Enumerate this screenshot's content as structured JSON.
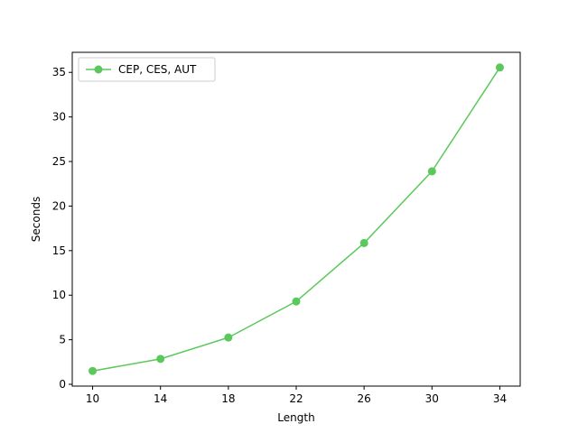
{
  "chart_data": {
    "type": "line",
    "title": "",
    "xlabel": "Length",
    "ylabel": "Seconds",
    "x": [
      10,
      14,
      18,
      22,
      26,
      30,
      34
    ],
    "series": [
      {
        "name": "CEP, CES, AUT",
        "color": "#5ac85a",
        "marker": "circle",
        "values": [
          1.5,
          2.85,
          5.25,
          9.3,
          15.85,
          23.9,
          35.55
        ]
      }
    ],
    "xticks": [
      10,
      14,
      18,
      22,
      26,
      30,
      34
    ],
    "yticks": [
      0,
      5,
      10,
      15,
      20,
      25,
      30,
      35
    ],
    "xlim": [
      8.8,
      35.2
    ],
    "ylim": [
      -0.2,
      37.25
    ],
    "grid": false,
    "legend_position": "upper-left"
  }
}
